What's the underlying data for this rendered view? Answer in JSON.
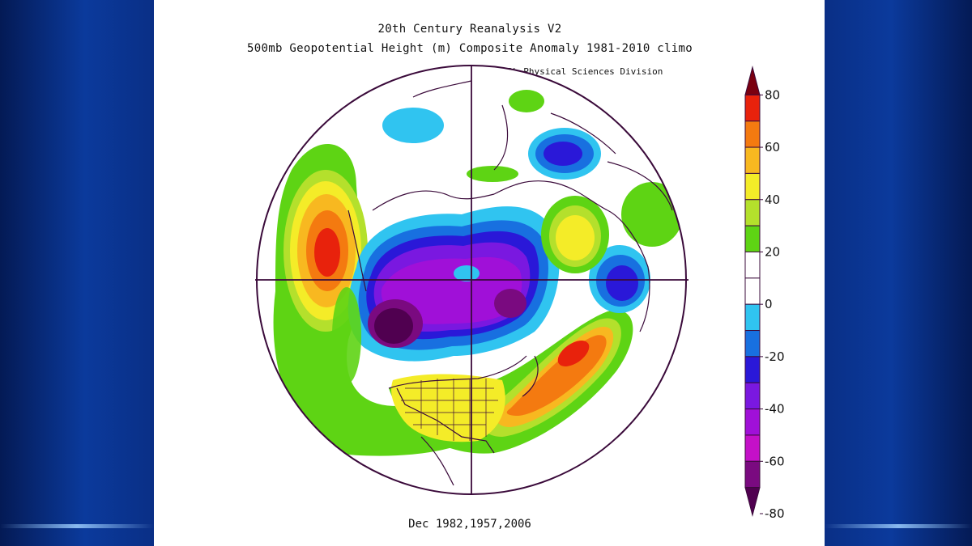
{
  "header": {
    "line1": "20th Century Reanalysis V2",
    "line2": "500mb Geopotential Height (m) Composite Anomaly 1981-2010 climo",
    "credit": "NOAA/ESRL Physical Sciences Division"
  },
  "footer": {
    "dates": "Dec 1982,1957,2006"
  },
  "colorbar": {
    "labels": [
      "80",
      "60",
      "40",
      "20",
      "0",
      "-20",
      "-40",
      "-60",
      "-80"
    ],
    "colors": [
      "#7a0010",
      "#e8220c",
      "#f47a10",
      "#f8b820",
      "#f4ec28",
      "#b4e02c",
      "#5ed414",
      "#ffffff",
      "#ffffff",
      "#30c4f0",
      "#1870e0",
      "#2a18d8",
      "#7a18e0",
      "#a010d8",
      "#c410c8",
      "#7a0a80",
      "#500050"
    ]
  }
}
